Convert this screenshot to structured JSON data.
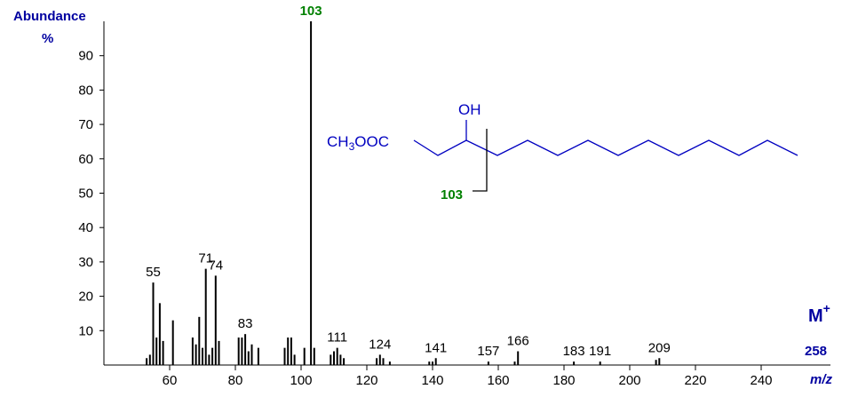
{
  "chart_data": {
    "type": "spectrum",
    "y_title": "Abundance",
    "y_unit": "%",
    "x_title": "m/z",
    "x": [
      53,
      54,
      55,
      56,
      57,
      58,
      61,
      67,
      68,
      69,
      70,
      71,
      72,
      73,
      74,
      75,
      81,
      82,
      83,
      84,
      85,
      87,
      95,
      96,
      97,
      98,
      101,
      103,
      104,
      109,
      110,
      111,
      112,
      113,
      123,
      124,
      125,
      127,
      139,
      140,
      141,
      157,
      165,
      166,
      183,
      191,
      208,
      209
    ],
    "values": [
      2,
      3,
      24,
      8,
      18,
      7,
      13,
      8,
      6,
      14,
      5,
      28,
      3,
      5,
      26,
      7,
      8,
      8,
      9,
      4,
      6,
      5,
      5,
      8,
      8,
      3,
      5,
      100,
      5,
      3,
      4,
      5,
      3,
      2,
      2,
      3,
      2,
      1,
      1,
      1,
      2,
      1,
      1,
      4,
      1,
      1,
      1.5,
      2
    ],
    "peak_labels": [
      null,
      null,
      55,
      null,
      null,
      null,
      null,
      null,
      null,
      null,
      null,
      71,
      null,
      null,
      74,
      null,
      null,
      null,
      83,
      null,
      null,
      null,
      null,
      null,
      null,
      null,
      null,
      103,
      null,
      null,
      null,
      111,
      null,
      null,
      null,
      124,
      null,
      null,
      null,
      null,
      141,
      157,
      null,
      166,
      183,
      191,
      null,
      209
    ],
    "color": "#000000",
    "base_peak_label_color": "#008000",
    "xlim": [
      40,
      260
    ],
    "ylim": [
      0,
      100
    ],
    "xticks": [
      60,
      80,
      100,
      120,
      140,
      160,
      180,
      200,
      220,
      240
    ],
    "yticks": [
      10,
      20,
      30,
      40,
      50,
      60,
      70,
      80,
      90
    ],
    "molecular_ion": {
      "label": "M",
      "superscript": "+",
      "mz": 258
    },
    "structure": {
      "ester": [
        "CH",
        "3",
        "OOC"
      ],
      "hydroxyl": "OH",
      "fragment": "103"
    }
  }
}
